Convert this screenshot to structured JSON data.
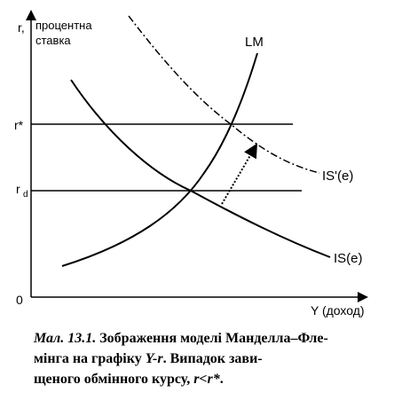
{
  "axes": {
    "y_label": [
      "r,",
      "процентна",
      "ставка"
    ],
    "x_label": "Y (доход)",
    "origin": "0"
  },
  "levels": {
    "r_star": "r*",
    "r_d": {
      "base": "r",
      "sub": "d"
    }
  },
  "curves": {
    "lm": "LM",
    "is": "IS(e)",
    "is_prime": "IS'(e)"
  },
  "caption": {
    "line1": [
      "Мал. 13.1.",
      " Зображення моделі Манделла–Фле-"
    ],
    "line2": [
      "мінга на графіку ",
      "Y-r",
      ". Випадок зави-"
    ],
    "line3": [
      "щеного обмінного курсу, ",
      "r<r*",
      "."
    ]
  }
}
